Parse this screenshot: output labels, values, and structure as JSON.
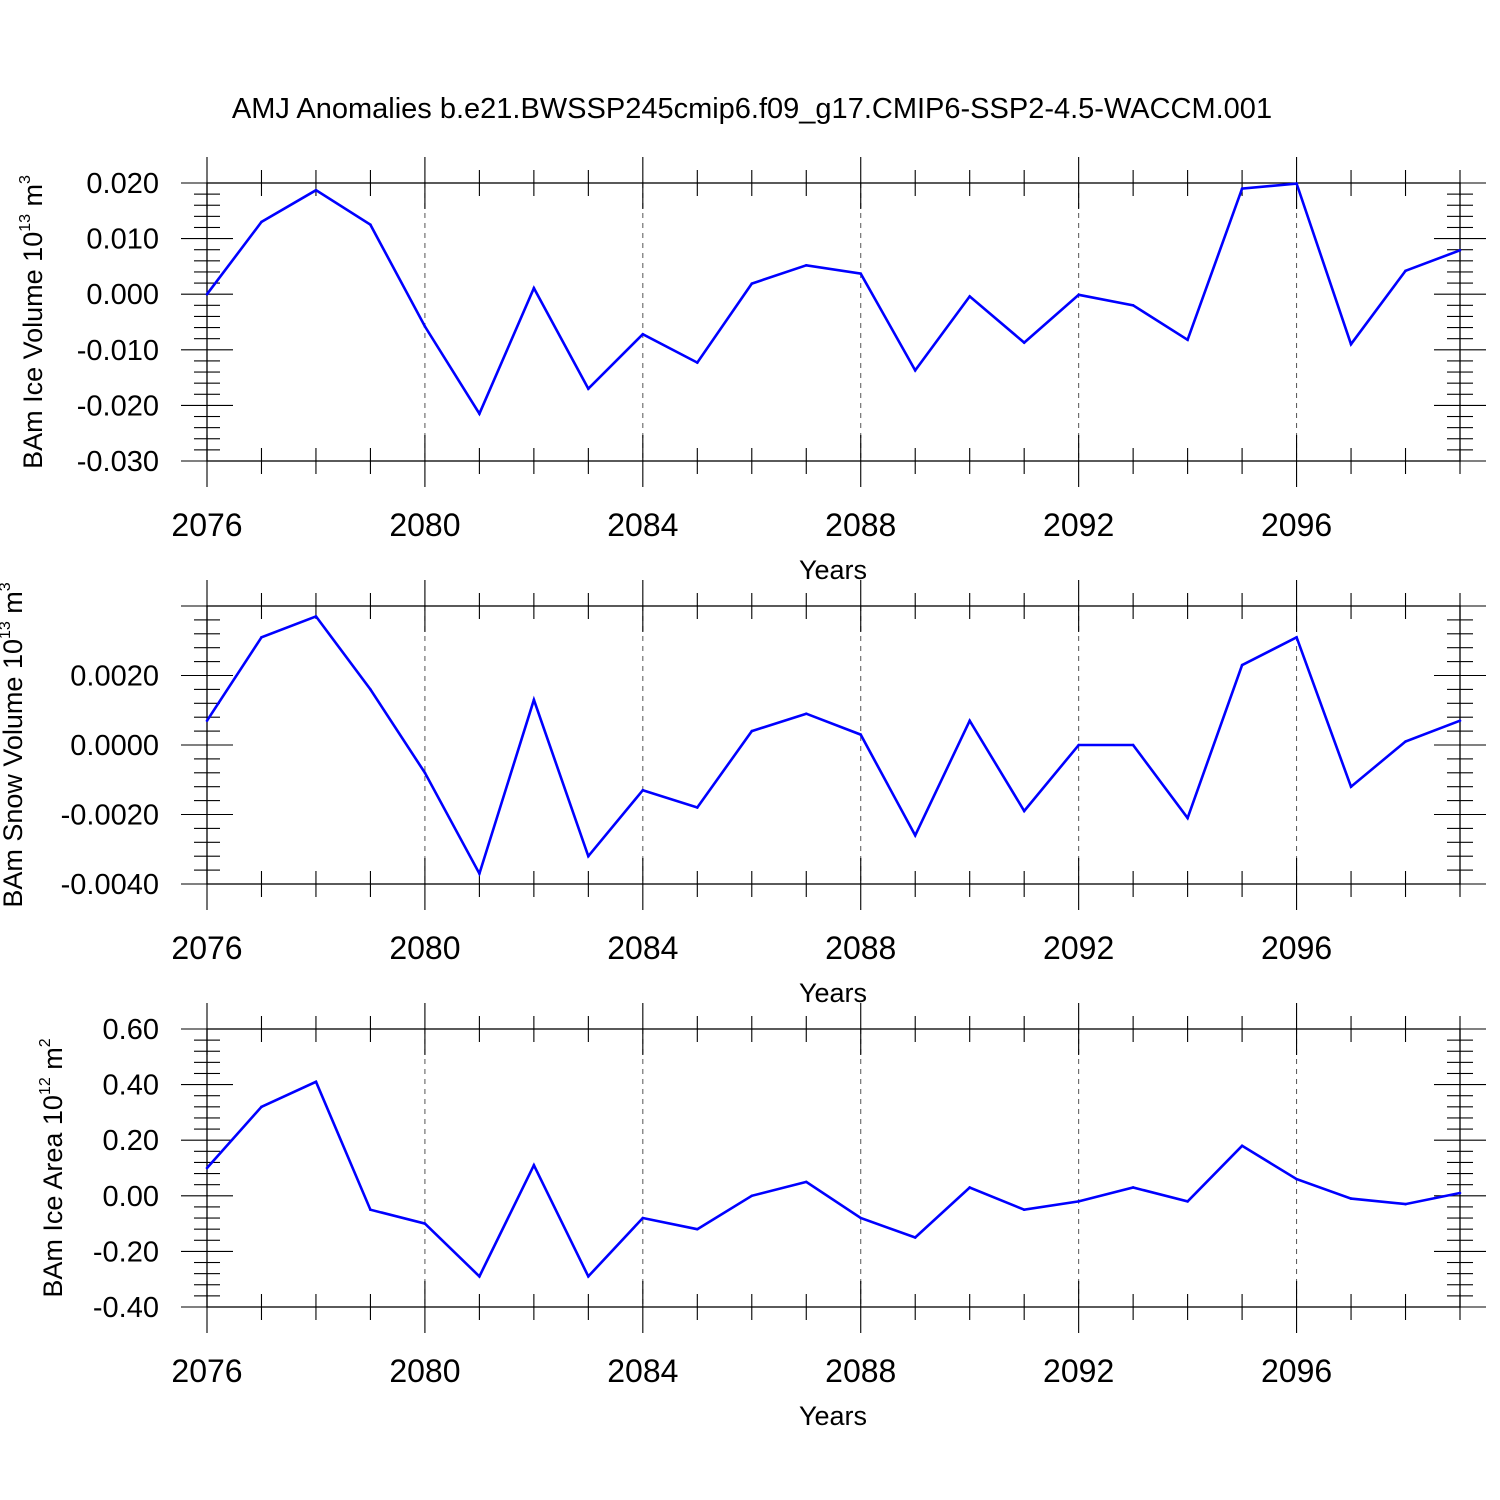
{
  "title": "AMJ Anomalies b.e21.BWSSP245cmip6.f09_g17.CMIP6-SSP2-4.5-WACCM.001",
  "chart_data": [
    {
      "type": "line",
      "ylabel": {
        "text": "BAm Ice Volume 10",
        "exp": "13",
        "unit": " m",
        "unit_exp": "3"
      },
      "xlabel": "Years",
      "xlim": [
        2076,
        2099
      ],
      "ylim": [
        -0.03,
        0.02
      ],
      "x_ticks": [
        2076,
        2080,
        2084,
        2088,
        2092,
        2096
      ],
      "x_tick_labels": [
        "2076",
        "2080",
        "2084",
        "2088",
        "2092",
        "2096"
      ],
      "y_ticks": [
        -0.03,
        -0.02,
        -0.01,
        0.0,
        0.01,
        0.02
      ],
      "y_tick_labels": [
        "-0.030",
        "-0.020",
        "-0.010",
        "0.000",
        "0.010",
        "0.020"
      ],
      "zero_line": false,
      "grid": "dashed vertical at major x ticks",
      "line_color": "#0000ff",
      "x": [
        2076,
        2077,
        2078,
        2079,
        2080,
        2081,
        2082,
        2083,
        2084,
        2085,
        2086,
        2087,
        2088,
        2089,
        2090,
        2091,
        2092,
        2093,
        2094,
        2095,
        2096,
        2097,
        2098,
        2099
      ],
      "values": [
        0.0,
        0.013,
        0.0187,
        0.0125,
        -0.0058,
        -0.0215,
        0.0011,
        -0.017,
        -0.0072,
        -0.0123,
        0.0019,
        0.0052,
        0.0037,
        -0.0137,
        -0.0004,
        -0.0087,
        -0.0001,
        -0.002,
        -0.0082,
        0.019,
        0.0199,
        -0.009,
        0.0042,
        0.0079
      ]
    },
    {
      "type": "line",
      "ylabel": {
        "text": "BAm Snow Volume 10",
        "exp": "13",
        "unit": " m",
        "unit_exp": "3"
      },
      "xlabel": "Years",
      "xlim": [
        2076,
        2099
      ],
      "ylim": [
        -0.004,
        0.004
      ],
      "x_ticks": [
        2076,
        2080,
        2084,
        2088,
        2092,
        2096
      ],
      "x_tick_labels": [
        "2076",
        "2080",
        "2084",
        "2088",
        "2092",
        "2096"
      ],
      "y_ticks": [
        -0.004,
        -0.002,
        0.0,
        0.002
      ],
      "y_tick_labels": [
        "-0.0040",
        "-0.0020",
        "0.0000",
        "0.0020"
      ],
      "zero_line": false,
      "grid": "dashed vertical at major x ticks",
      "line_color": "#0000ff",
      "x": [
        2076,
        2077,
        2078,
        2079,
        2080,
        2081,
        2082,
        2083,
        2084,
        2085,
        2086,
        2087,
        2088,
        2089,
        2090,
        2091,
        2092,
        2093,
        2094,
        2095,
        2096,
        2097,
        2098,
        2099
      ],
      "values": [
        0.0007,
        0.0031,
        0.0037,
        0.0016,
        -0.0008,
        -0.0037,
        0.0013,
        -0.0032,
        -0.0013,
        -0.0018,
        0.0004,
        0.0009,
        0.0003,
        -0.0026,
        0.0007,
        -0.0019,
        0.0,
        0.0,
        -0.0021,
        0.0023,
        0.0031,
        -0.0012,
        0.0001,
        0.0007
      ]
    },
    {
      "type": "line",
      "ylabel": {
        "text": "BAm Ice Area 10",
        "exp": "12",
        "unit": " m",
        "unit_exp": "2"
      },
      "xlabel": "Years",
      "xlim": [
        2076,
        2099
      ],
      "ylim": [
        -0.4,
        0.6
      ],
      "x_ticks": [
        2076,
        2080,
        2084,
        2088,
        2092,
        2096
      ],
      "x_tick_labels": [
        "2076",
        "2080",
        "2084",
        "2088",
        "2092",
        "2096"
      ],
      "y_ticks": [
        -0.4,
        -0.2,
        0.0,
        0.2,
        0.4,
        0.6
      ],
      "y_tick_labels": [
        "-0.40",
        "-0.20",
        "0.00",
        "0.20",
        "0.40",
        "0.60"
      ],
      "zero_line": false,
      "grid": "dashed vertical at major x ticks",
      "line_color": "#0000ff",
      "x": [
        2076,
        2077,
        2078,
        2079,
        2080,
        2081,
        2082,
        2083,
        2084,
        2085,
        2086,
        2087,
        2088,
        2089,
        2090,
        2091,
        2092,
        2093,
        2094,
        2095,
        2096,
        2097,
        2098,
        2099
      ],
      "values": [
        0.1,
        0.32,
        0.41,
        -0.05,
        -0.1,
        -0.29,
        0.11,
        -0.29,
        -0.08,
        -0.12,
        0.0,
        0.05,
        -0.08,
        -0.15,
        0.03,
        -0.05,
        -0.02,
        0.03,
        -0.02,
        0.18,
        0.06,
        -0.01,
        -0.03,
        0.01
      ]
    }
  ]
}
